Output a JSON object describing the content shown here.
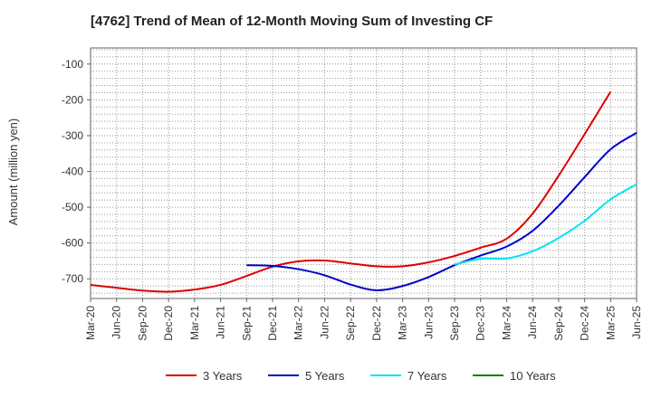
{
  "chart_data": {
    "type": "line",
    "title": "[4762]  Trend of Mean of 12-Month Moving Sum of Investing CF",
    "xlabel": "",
    "ylabel": "Amount (million yen)",
    "ylim": [
      -755,
      -55
    ],
    "yticks": [
      -100,
      -200,
      -300,
      -400,
      -500,
      -600,
      -700
    ],
    "ytick_labels": [
      "-100",
      "-200",
      "-300",
      "-400",
      "-500",
      "-600",
      "-700"
    ],
    "grid": true,
    "legend_position": "bottom",
    "x_labels": [
      "Mar-20",
      "Jun-20",
      "Sep-20",
      "Dec-20",
      "Mar-21",
      "Jun-21",
      "Sep-21",
      "Dec-21",
      "Mar-22",
      "Jun-22",
      "Sep-22",
      "Dec-22",
      "Mar-23",
      "Jun-23",
      "Sep-23",
      "Dec-23",
      "Mar-24",
      "Jun-24",
      "Sep-24",
      "Dec-24",
      "Mar-25",
      "Jun-25"
    ],
    "series": [
      {
        "name": "3 Years",
        "color": "#dd0000",
        "start_index": 0,
        "values": [
          -717,
          -725,
          -733,
          -736,
          -730,
          -717,
          -692,
          -666,
          -651,
          -649,
          -657,
          -665,
          -665,
          -654,
          -636,
          -613,
          -588,
          -518,
          -412,
          -296,
          -177
        ]
      },
      {
        "name": "5 Years",
        "color": "#0000cc",
        "start_index": 6,
        "values": [
          -662,
          -664,
          -673,
          -690,
          -716,
          -732,
          -720,
          -695,
          -662,
          -635,
          -610,
          -566,
          -496,
          -416,
          -338,
          -292
        ]
      },
      {
        "name": "7 Years",
        "color": "#00e5ee",
        "start_index": 14,
        "values": [
          -660,
          -644,
          -643,
          -623,
          -586,
          -538,
          -478,
          -436
        ]
      },
      {
        "name": "10 Years",
        "color": "#008000",
        "start_index": 0,
        "values": []
      }
    ]
  }
}
